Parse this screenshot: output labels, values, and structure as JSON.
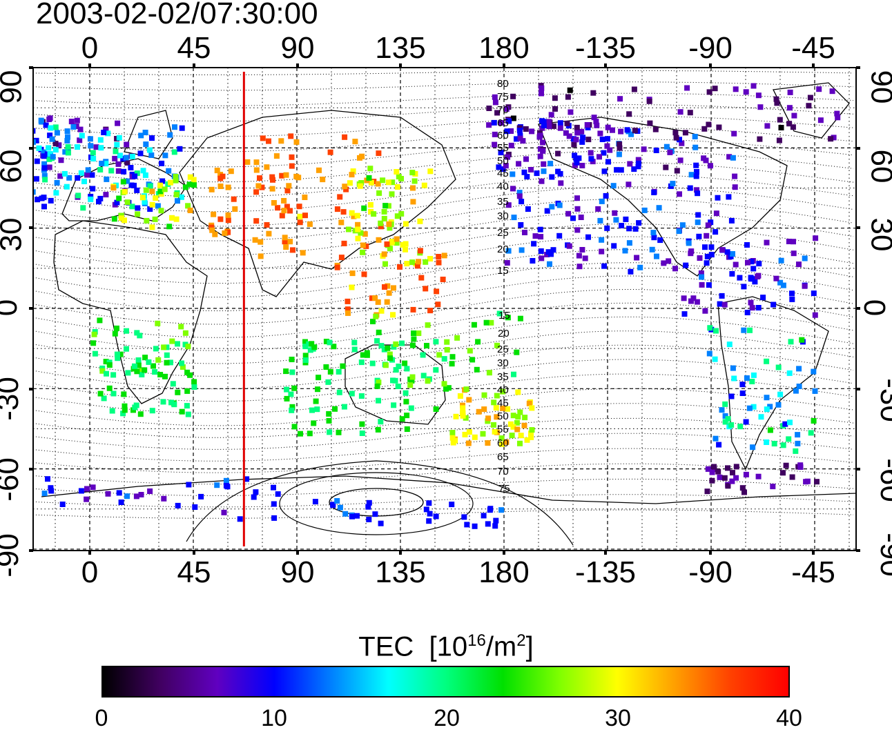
{
  "timestamp": "2003-02-02/07:30:00",
  "longitude_ticks_top": [
    "0",
    "45",
    "90",
    "135",
    "180",
    "-135",
    "-90",
    "-45"
  ],
  "longitude_ticks_bottom": [
    "0",
    "45",
    "90",
    "135",
    "180",
    "-135",
    "-90",
    "-45"
  ],
  "latitude_ticks_left": [
    "90",
    "60",
    "30",
    "0",
    "-30",
    "-60",
    "-90"
  ],
  "latitude_ticks_right": [
    "90",
    "60",
    "30",
    "0",
    "-30",
    "-60",
    "-90"
  ],
  "magnetic_latitude_labels_north": [
    "80",
    "75",
    "70",
    "65",
    "60",
    "55",
    "50",
    "45",
    "40",
    "35",
    "30",
    "25",
    "20",
    "15"
  ],
  "magnetic_latitude_labels_south": [
    "15",
    "20",
    "25",
    "30",
    "35",
    "40",
    "45",
    "50",
    "55",
    "60",
    "65",
    "70",
    "75"
  ],
  "marker_line": {
    "longitude": 67,
    "color": "#e00000"
  },
  "colorbar": {
    "label": "TEC",
    "units_prefix": "[10",
    "units_exp": "16",
    "units_mid": "/m",
    "units_exp2": "2",
    "units_suffix": "]",
    "ticks": [
      "0",
      "10",
      "20",
      "30",
      "40"
    ],
    "colors": [
      "#000000",
      "#400060",
      "#6000c0",
      "#0000ff",
      "#0080ff",
      "#00ffff",
      "#00ff80",
      "#00e000",
      "#80ff00",
      "#ffff00",
      "#ffa000",
      "#ff4000",
      "#ff0000"
    ]
  }
}
